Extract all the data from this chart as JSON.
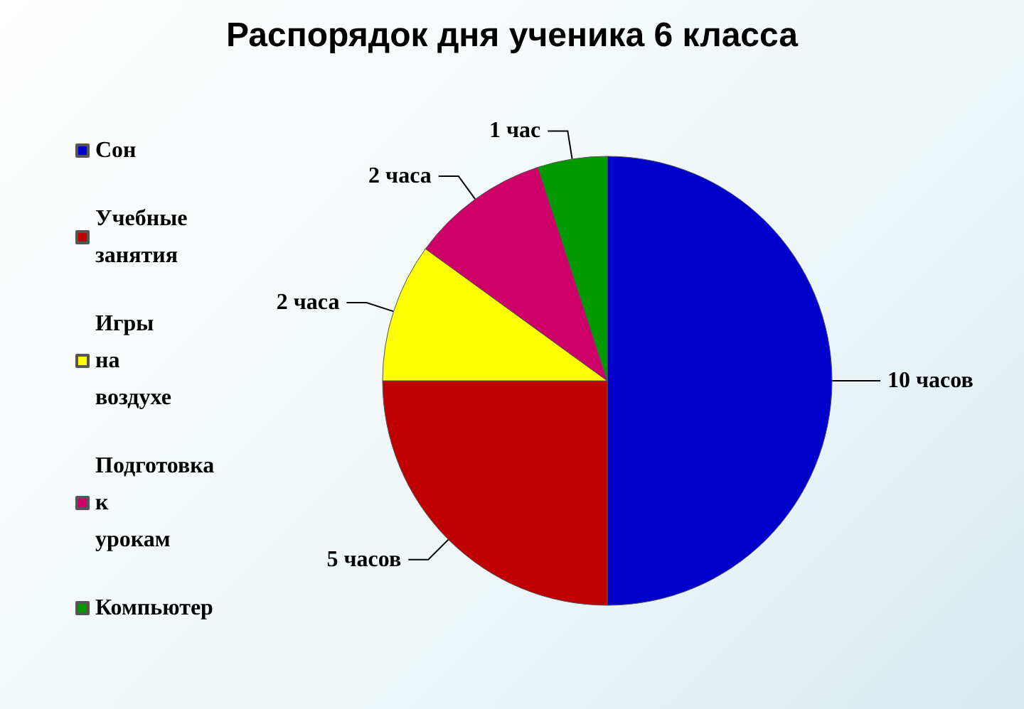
{
  "chart_data": {
    "type": "pie",
    "title": "Распорядок дня ученика 6 класса",
    "categories": [
      "Сон",
      "Учебные занятия",
      "Игры на воздухе",
      "Подготовка к урокам",
      "Компьютер"
    ],
    "values": [
      10,
      5,
      2,
      2,
      1
    ],
    "colors": [
      "#0000cc",
      "#c00000",
      "#ffff00",
      "#cc0066",
      "#009900"
    ],
    "value_labels": [
      "10 часов",
      "5 часов",
      "2 часа",
      "2 часа",
      "1 час"
    ],
    "legend": "left"
  }
}
